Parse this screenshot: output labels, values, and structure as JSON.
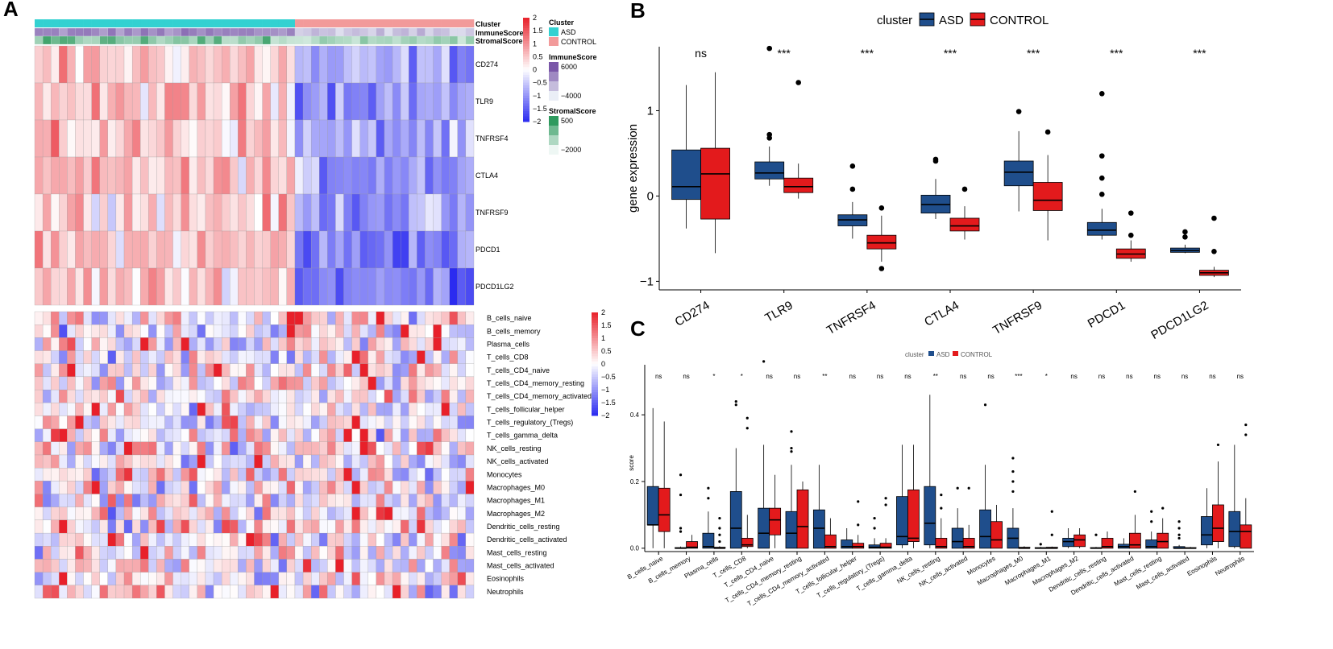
{
  "panels": {
    "a": "A",
    "b": "B",
    "c": "C"
  },
  "colors": {
    "asd": "#1f4e8c",
    "control": "#e31a1c",
    "annot_asd": "#33d1d1",
    "annot_control": "#f29a9a",
    "heat_high": "#e8202a",
    "heat_mid": "#ffffff",
    "heat_low": "#2b2bf0",
    "immune_high": "#7a57a8",
    "immune_low": "#eaeef6",
    "stromal_high": "#2e9a5e",
    "stromal_low": "#eef7f4"
  },
  "chart_data": [
    {
      "type": "heatmap",
      "panel": "A-top",
      "annotation_rows": [
        "Cluster",
        "ImmuneScore",
        "StromalScore"
      ],
      "rows": [
        "CD274",
        "TLR9",
        "TNFRSF4",
        "CTLA4",
        "TNFRSF9",
        "PDCD1",
        "PDCD1LG2"
      ],
      "n_columns": 54,
      "groups": [
        {
          "name": "ASD",
          "n": 32
        },
        {
          "name": "CONTROL",
          "n": 22
        }
      ],
      "color_scale": {
        "ticks": [
          "2",
          "1.5",
          "1",
          "0.5",
          "0",
          "−0.5",
          "−1",
          "−1.5",
          "−2"
        ],
        "min": -2,
        "max": 2
      },
      "legends": {
        "cluster": {
          "title": "Cluster",
          "items": [
            "ASD",
            "CONTROL"
          ]
        },
        "immune": {
          "title": "ImmuneScore",
          "ticks": [
            "6000",
            "−4000"
          ]
        },
        "stromal": {
          "title": "StromalScore",
          "ticks": [
            "500",
            "−2000"
          ]
        }
      }
    },
    {
      "type": "heatmap",
      "panel": "A-bottom",
      "rows": [
        "B_cells_naive",
        "B_cells_memory",
        "Plasma_cells",
        "T_cells_CD8",
        "T_cells_CD4_naive",
        "T_cells_CD4_memory_resting",
        "T_cells_CD4_memory_activated",
        "T_cells_follicular_helper",
        "T_cells_regulatory_(Tregs)",
        "T_cells_gamma_delta",
        "NK_cells_resting",
        "NK_cells_activated",
        "Monocytes",
        "Macrophages_M0",
        "Macrophages_M1",
        "Macrophages_M2",
        "Dendritic_cells_resting",
        "Dendritic_cells_activated",
        "Mast_cells_resting",
        "Mast_cells_activated",
        "Eosinophils",
        "Neutrophils"
      ],
      "n_columns": 54,
      "color_scale": {
        "ticks": [
          "2",
          "1.5",
          "1",
          "0.5",
          "0",
          "−0.5",
          "−1",
          "−1.5",
          "−2"
        ],
        "min": -2,
        "max": 2
      }
    },
    {
      "type": "box",
      "panel": "B",
      "legend_title": "cluster",
      "series_names": [
        "ASD",
        "CONTROL"
      ],
      "ylabel": "gene expression",
      "ylim": [
        -1.1,
        1.75
      ],
      "yticks": [
        {
          "v": 1,
          "label": "1"
        },
        {
          "v": 0,
          "label": "0"
        },
        {
          "v": -1,
          "label": "−1"
        }
      ],
      "categories": [
        "CD274",
        "TLR9",
        "TNFRSF4",
        "CTLA4",
        "TNFRSF9",
        "PDCD1",
        "PDCD1LG2"
      ],
      "significance": [
        "ns",
        "***",
        "***",
        "***",
        "***",
        "***",
        "***"
      ],
      "boxes": [
        [
          {
            "q1": -0.04,
            "med": 0.11,
            "q3": 0.54,
            "lo": -0.38,
            "hi": 1.3,
            "out": []
          },
          {
            "q1": -0.27,
            "med": 0.26,
            "q3": 0.56,
            "lo": -0.67,
            "hi": 1.45,
            "out": []
          }
        ],
        [
          {
            "q1": 0.2,
            "med": 0.27,
            "q3": 0.4,
            "lo": 0.12,
            "hi": 0.58,
            "out": [
              0.68,
              0.72,
              1.73
            ]
          },
          {
            "q1": 0.04,
            "med": 0.11,
            "q3": 0.21,
            "lo": -0.03,
            "hi": 0.38,
            "out": [
              1.33
            ]
          }
        ],
        [
          {
            "q1": -0.35,
            "med": -0.28,
            "q3": -0.22,
            "lo": -0.5,
            "hi": -0.07,
            "out": [
              0.08,
              0.35
            ]
          },
          {
            "q1": -0.62,
            "med": -0.55,
            "q3": -0.46,
            "lo": -0.77,
            "hi": -0.23,
            "out": [
              -0.14,
              -0.85
            ]
          }
        ],
        [
          {
            "q1": -0.2,
            "med": -0.1,
            "q3": 0.01,
            "lo": -0.27,
            "hi": 0.2,
            "out": [
              0.41,
              0.43
            ]
          },
          {
            "q1": -0.41,
            "med": -0.35,
            "q3": -0.26,
            "lo": -0.51,
            "hi": -0.12,
            "out": [
              0.08
            ]
          }
        ],
        [
          {
            "q1": 0.12,
            "med": 0.28,
            "q3": 0.41,
            "lo": -0.18,
            "hi": 0.76,
            "out": [
              0.99
            ]
          },
          {
            "q1": -0.17,
            "med": -0.05,
            "q3": 0.16,
            "lo": -0.52,
            "hi": 0.48,
            "out": [
              0.75
            ]
          }
        ],
        [
          {
            "q1": -0.46,
            "med": -0.4,
            "q3": -0.31,
            "lo": -0.51,
            "hi": -0.15,
            "out": [
              0.02,
              0.21,
              0.47,
              1.2
            ]
          },
          {
            "q1": -0.73,
            "med": -0.68,
            "q3": -0.62,
            "lo": -0.77,
            "hi": -0.52,
            "out": [
              -0.2,
              -0.46
            ]
          }
        ],
        [
          {
            "q1": -0.66,
            "med": -0.64,
            "q3": -0.61,
            "lo": -0.67,
            "hi": -0.57,
            "out": [
              -0.42,
              -0.48
            ]
          },
          {
            "q1": -0.93,
            "med": -0.9,
            "q3": -0.87,
            "lo": -0.95,
            "hi": -0.83,
            "out": [
              -0.26,
              -0.65
            ]
          }
        ]
      ]
    },
    {
      "type": "box",
      "panel": "C",
      "legend_title": "cluster",
      "series_names": [
        "ASD",
        "CONTROL"
      ],
      "ylabel": "score",
      "ylim": [
        -0.01,
        0.55
      ],
      "yticks": [
        {
          "v": 0.4,
          "label": "0.4"
        },
        {
          "v": 0.2,
          "label": "0.2"
        },
        {
          "v": 0,
          "label": "0.0"
        }
      ],
      "categories": [
        "B_cells_naive",
        "B_cells_memory",
        "Plasma_cells",
        "T_cells_CD8",
        "T_cells_CD4_naive",
        "T_cells_CD4_memory_resting",
        "T_cells_CD4_memory_activated",
        "T_cells_follicular_helper",
        "T_cells_regulatory_(Tregs)",
        "T_cells_gamma_delta",
        "NK_cells_resting",
        "NK_cells_activated",
        "Monocytes",
        "Macrophages_M0",
        "Macrophages_M1",
        "Macrophages_M2",
        "Dendritic_cells_resting",
        "Dendritic_cells_activated",
        "Mast_cells_resting",
        "Mast_cells_activated",
        "Eosinophils",
        "Neutrophils"
      ],
      "significance": [
        "ns",
        "ns",
        "*",
        "*",
        "ns",
        "ns",
        "**",
        "ns",
        "ns",
        "ns",
        "**",
        "ns",
        "ns",
        "***",
        "*",
        "ns",
        "ns",
        "ns",
        "ns",
        "ns",
        "ns",
        "ns"
      ],
      "boxes": [
        [
          {
            "q1": 0.07,
            "med": 0.07,
            "q3": 0.185,
            "lo": 0,
            "hi": 0.42,
            "out": []
          },
          {
            "q1": 0.05,
            "med": 0.1,
            "q3": 0.18,
            "lo": 0,
            "hi": 0.38,
            "out": []
          }
        ],
        [
          {
            "q1": 0,
            "med": 0,
            "q3": 0.002,
            "lo": 0,
            "hi": 0.005,
            "out": [
              0.05,
              0.06,
              0.16,
              0.22
            ]
          },
          {
            "q1": 0,
            "med": 0.003,
            "q3": 0.02,
            "lo": 0,
            "hi": 0.04,
            "out": []
          }
        ],
        [
          {
            "q1": 0,
            "med": 0.005,
            "q3": 0.045,
            "lo": 0,
            "hi": 0.11,
            "out": [
              0.15,
              0.18
            ]
          },
          {
            "q1": 0,
            "med": 0,
            "q3": 0.003,
            "lo": 0,
            "hi": 0.006,
            "out": [
              0.02,
              0.04,
              0.06,
              0.09
            ]
          }
        ],
        [
          {
            "q1": 0,
            "med": 0.06,
            "q3": 0.17,
            "lo": 0,
            "hi": 0.3,
            "out": [
              0.43,
              0.44
            ]
          },
          {
            "q1": 0.005,
            "med": 0.01,
            "q3": 0.03,
            "lo": 0,
            "hi": 0.1,
            "out": [
              0.39,
              0.36
            ]
          }
        ],
        [
          {
            "q1": 0,
            "med": 0.045,
            "q3": 0.12,
            "lo": 0,
            "hi": 0.31,
            "out": [
              0.56
            ]
          },
          {
            "q1": 0.04,
            "med": 0.085,
            "q3": 0.12,
            "lo": 0,
            "hi": 0.22,
            "out": []
          }
        ],
        [
          {
            "q1": 0,
            "med": 0.045,
            "q3": 0.11,
            "lo": 0,
            "hi": 0.25,
            "out": [
              0.29,
              0.3,
              0.35
            ]
          },
          {
            "q1": 0,
            "med": 0.065,
            "q3": 0.175,
            "lo": 0,
            "hi": 0.2,
            "out": []
          }
        ],
        [
          {
            "q1": 0,
            "med": 0.06,
            "q3": 0.115,
            "lo": 0,
            "hi": 0.25,
            "out": []
          },
          {
            "q1": 0,
            "med": 0.005,
            "q3": 0.04,
            "lo": 0,
            "hi": 0.09,
            "out": []
          }
        ],
        [
          {
            "q1": 0,
            "med": 0.005,
            "q3": 0.025,
            "lo": 0,
            "hi": 0.06,
            "out": []
          },
          {
            "q1": 0,
            "med": 0.005,
            "q3": 0.015,
            "lo": 0,
            "hi": 0.04,
            "out": [
              0.07,
              0.14
            ]
          }
        ],
        [
          {
            "q1": 0,
            "med": 0.003,
            "q3": 0.01,
            "lo": 0,
            "hi": 0.03,
            "out": [
              0.06,
              0.09
            ]
          },
          {
            "q1": 0,
            "med": 0.003,
            "q3": 0.015,
            "lo": 0,
            "hi": 0.03,
            "out": [
              0.13,
              0.15
            ]
          }
        ],
        [
          {
            "q1": 0.01,
            "med": 0.035,
            "q3": 0.155,
            "lo": 0,
            "hi": 0.31,
            "out": []
          },
          {
            "q1": 0.02,
            "med": 0.03,
            "q3": 0.175,
            "lo": 0,
            "hi": 0.31,
            "out": []
          }
        ],
        [
          {
            "q1": 0.01,
            "med": 0.075,
            "q3": 0.185,
            "lo": 0,
            "hi": 0.46,
            "out": []
          },
          {
            "q1": 0,
            "med": 0.005,
            "q3": 0.03,
            "lo": 0,
            "hi": 0.09,
            "out": [
              0.12,
              0.16
            ]
          }
        ],
        [
          {
            "q1": 0,
            "med": 0.02,
            "q3": 0.06,
            "lo": 0,
            "hi": 0.12,
            "out": [
              0.18
            ]
          },
          {
            "q1": 0,
            "med": 0.005,
            "q3": 0.03,
            "lo": 0,
            "hi": 0.07,
            "out": [
              0.18
            ]
          }
        ],
        [
          {
            "q1": 0,
            "med": 0.035,
            "q3": 0.115,
            "lo": 0,
            "hi": 0.25,
            "out": [
              0.43
            ]
          },
          {
            "q1": 0,
            "med": 0.025,
            "q3": 0.08,
            "lo": 0,
            "hi": 0.13,
            "out": []
          }
        ],
        [
          {
            "q1": 0,
            "med": 0.03,
            "q3": 0.06,
            "lo": 0,
            "hi": 0.12,
            "out": [
              0.17,
              0.2,
              0.23,
              0.27
            ]
          },
          {
            "q1": 0,
            "med": 0,
            "q3": 0.003,
            "lo": 0,
            "hi": 0.006,
            "out": []
          }
        ],
        [
          {
            "q1": 0,
            "med": 0,
            "q3": 0.002,
            "lo": 0,
            "hi": 0.004,
            "out": [
              0.012
            ]
          },
          {
            "q1": 0,
            "med": 0,
            "q3": 0.003,
            "lo": 0,
            "hi": 0.005,
            "out": [
              0.04,
              0.11
            ]
          }
        ],
        [
          {
            "q1": 0.005,
            "med": 0.02,
            "q3": 0.03,
            "lo": 0,
            "hi": 0.06,
            "out": []
          },
          {
            "q1": 0.005,
            "med": 0.025,
            "q3": 0.04,
            "lo": 0,
            "hi": 0.06,
            "out": []
          }
        ],
        [
          {
            "q1": 0,
            "med": 0,
            "q3": 0.002,
            "lo": 0,
            "hi": 0.004,
            "out": [
              0.04
            ]
          },
          {
            "q1": 0,
            "med": 0.005,
            "q3": 0.03,
            "lo": 0,
            "hi": 0.05,
            "out": []
          }
        ],
        [
          {
            "q1": 0,
            "med": 0.005,
            "q3": 0.012,
            "lo": 0,
            "hi": 0.03,
            "out": []
          },
          {
            "q1": 0,
            "med": 0.01,
            "q3": 0.045,
            "lo": 0,
            "hi": 0.1,
            "out": [
              0.17
            ]
          }
        ],
        [
          {
            "q1": 0,
            "med": 0.005,
            "q3": 0.025,
            "lo": 0,
            "hi": 0.05,
            "out": [
              0.08,
              0.11
            ]
          },
          {
            "q1": 0,
            "med": 0.02,
            "q3": 0.045,
            "lo": 0,
            "hi": 0.09,
            "out": [
              0.12
            ]
          }
        ],
        [
          {
            "q1": 0,
            "med": 0,
            "q3": 0.005,
            "lo": 0,
            "hi": 0.01,
            "out": [
              0.03,
              0.04,
              0.06,
              0.08
            ]
          },
          {
            "q1": 0,
            "med": 0,
            "q3": 0.002,
            "lo": 0,
            "hi": 0.004,
            "out": []
          }
        ],
        [
          {
            "q1": 0.01,
            "med": 0.04,
            "q3": 0.095,
            "lo": 0,
            "hi": 0.18,
            "out": []
          },
          {
            "q1": 0.02,
            "med": 0.06,
            "q3": 0.13,
            "lo": 0,
            "hi": 0.26,
            "out": [
              0.31
            ]
          }
        ],
        [
          {
            "q1": 0.005,
            "med": 0.05,
            "q3": 0.11,
            "lo": 0,
            "hi": 0.31,
            "out": []
          },
          {
            "q1": 0,
            "med": 0.05,
            "q3": 0.07,
            "lo": 0,
            "hi": 0.15,
            "out": [
              0.37,
              0.34
            ]
          }
        ]
      ]
    }
  ]
}
